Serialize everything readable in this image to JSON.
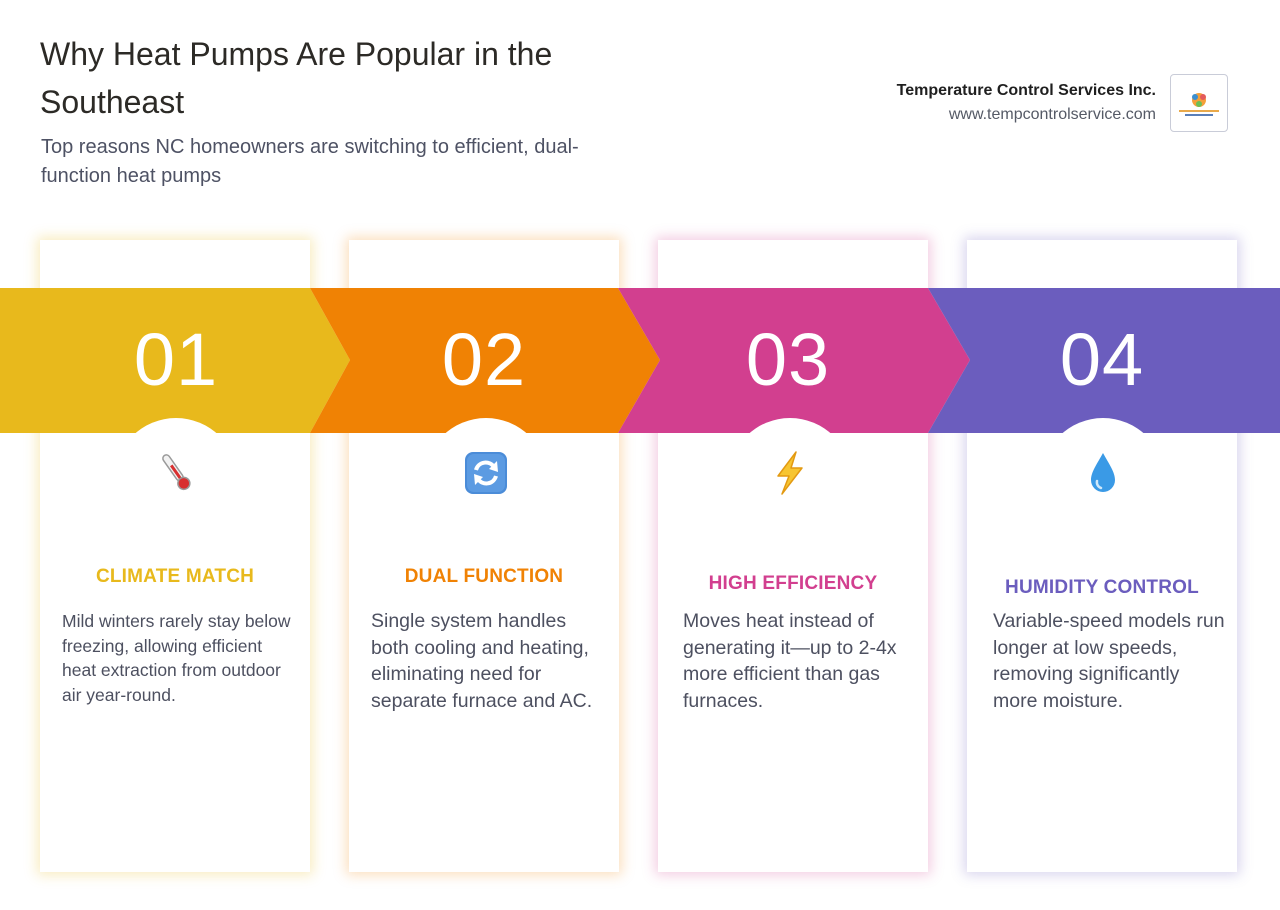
{
  "header": {
    "title": "Why Heat Pumps Are Popular in the Southeast",
    "subtitle": "Top reasons NC homeowners are switching to efficient, dual-function heat pumps"
  },
  "brand": {
    "name": "Temperature Control Services Inc.",
    "url": "www.tempcontrolservice.com",
    "logo_icon": "company-logo-icon"
  },
  "colors": {
    "yellow": "#E8B91C",
    "orange": "#F08204",
    "pink": "#D23F8F",
    "purple": "#6B5DBE"
  },
  "cards": [
    {
      "number": "01",
      "icon": "thermometer-icon",
      "title": "CLIMATE MATCH",
      "description": "Mild winters rarely stay below freezing, allowing efficient heat extraction from outdoor air year-round."
    },
    {
      "number": "02",
      "icon": "cycle-arrows-icon",
      "title": "DUAL FUNCTION",
      "description": "Single system handles both cooling and heating, eliminating need for separate furnace and AC."
    },
    {
      "number": "03",
      "icon": "lightning-bolt-icon",
      "title": "HIGH EFFICIENCY",
      "description": "Moves heat instead of generating it—up to 2-4x more efficient than gas furnaces."
    },
    {
      "number": "04",
      "icon": "water-droplet-icon",
      "title": "HUMIDITY CONTROL",
      "description": "Variable-speed models run longer at low speeds, removing significantly more moisture."
    }
  ]
}
